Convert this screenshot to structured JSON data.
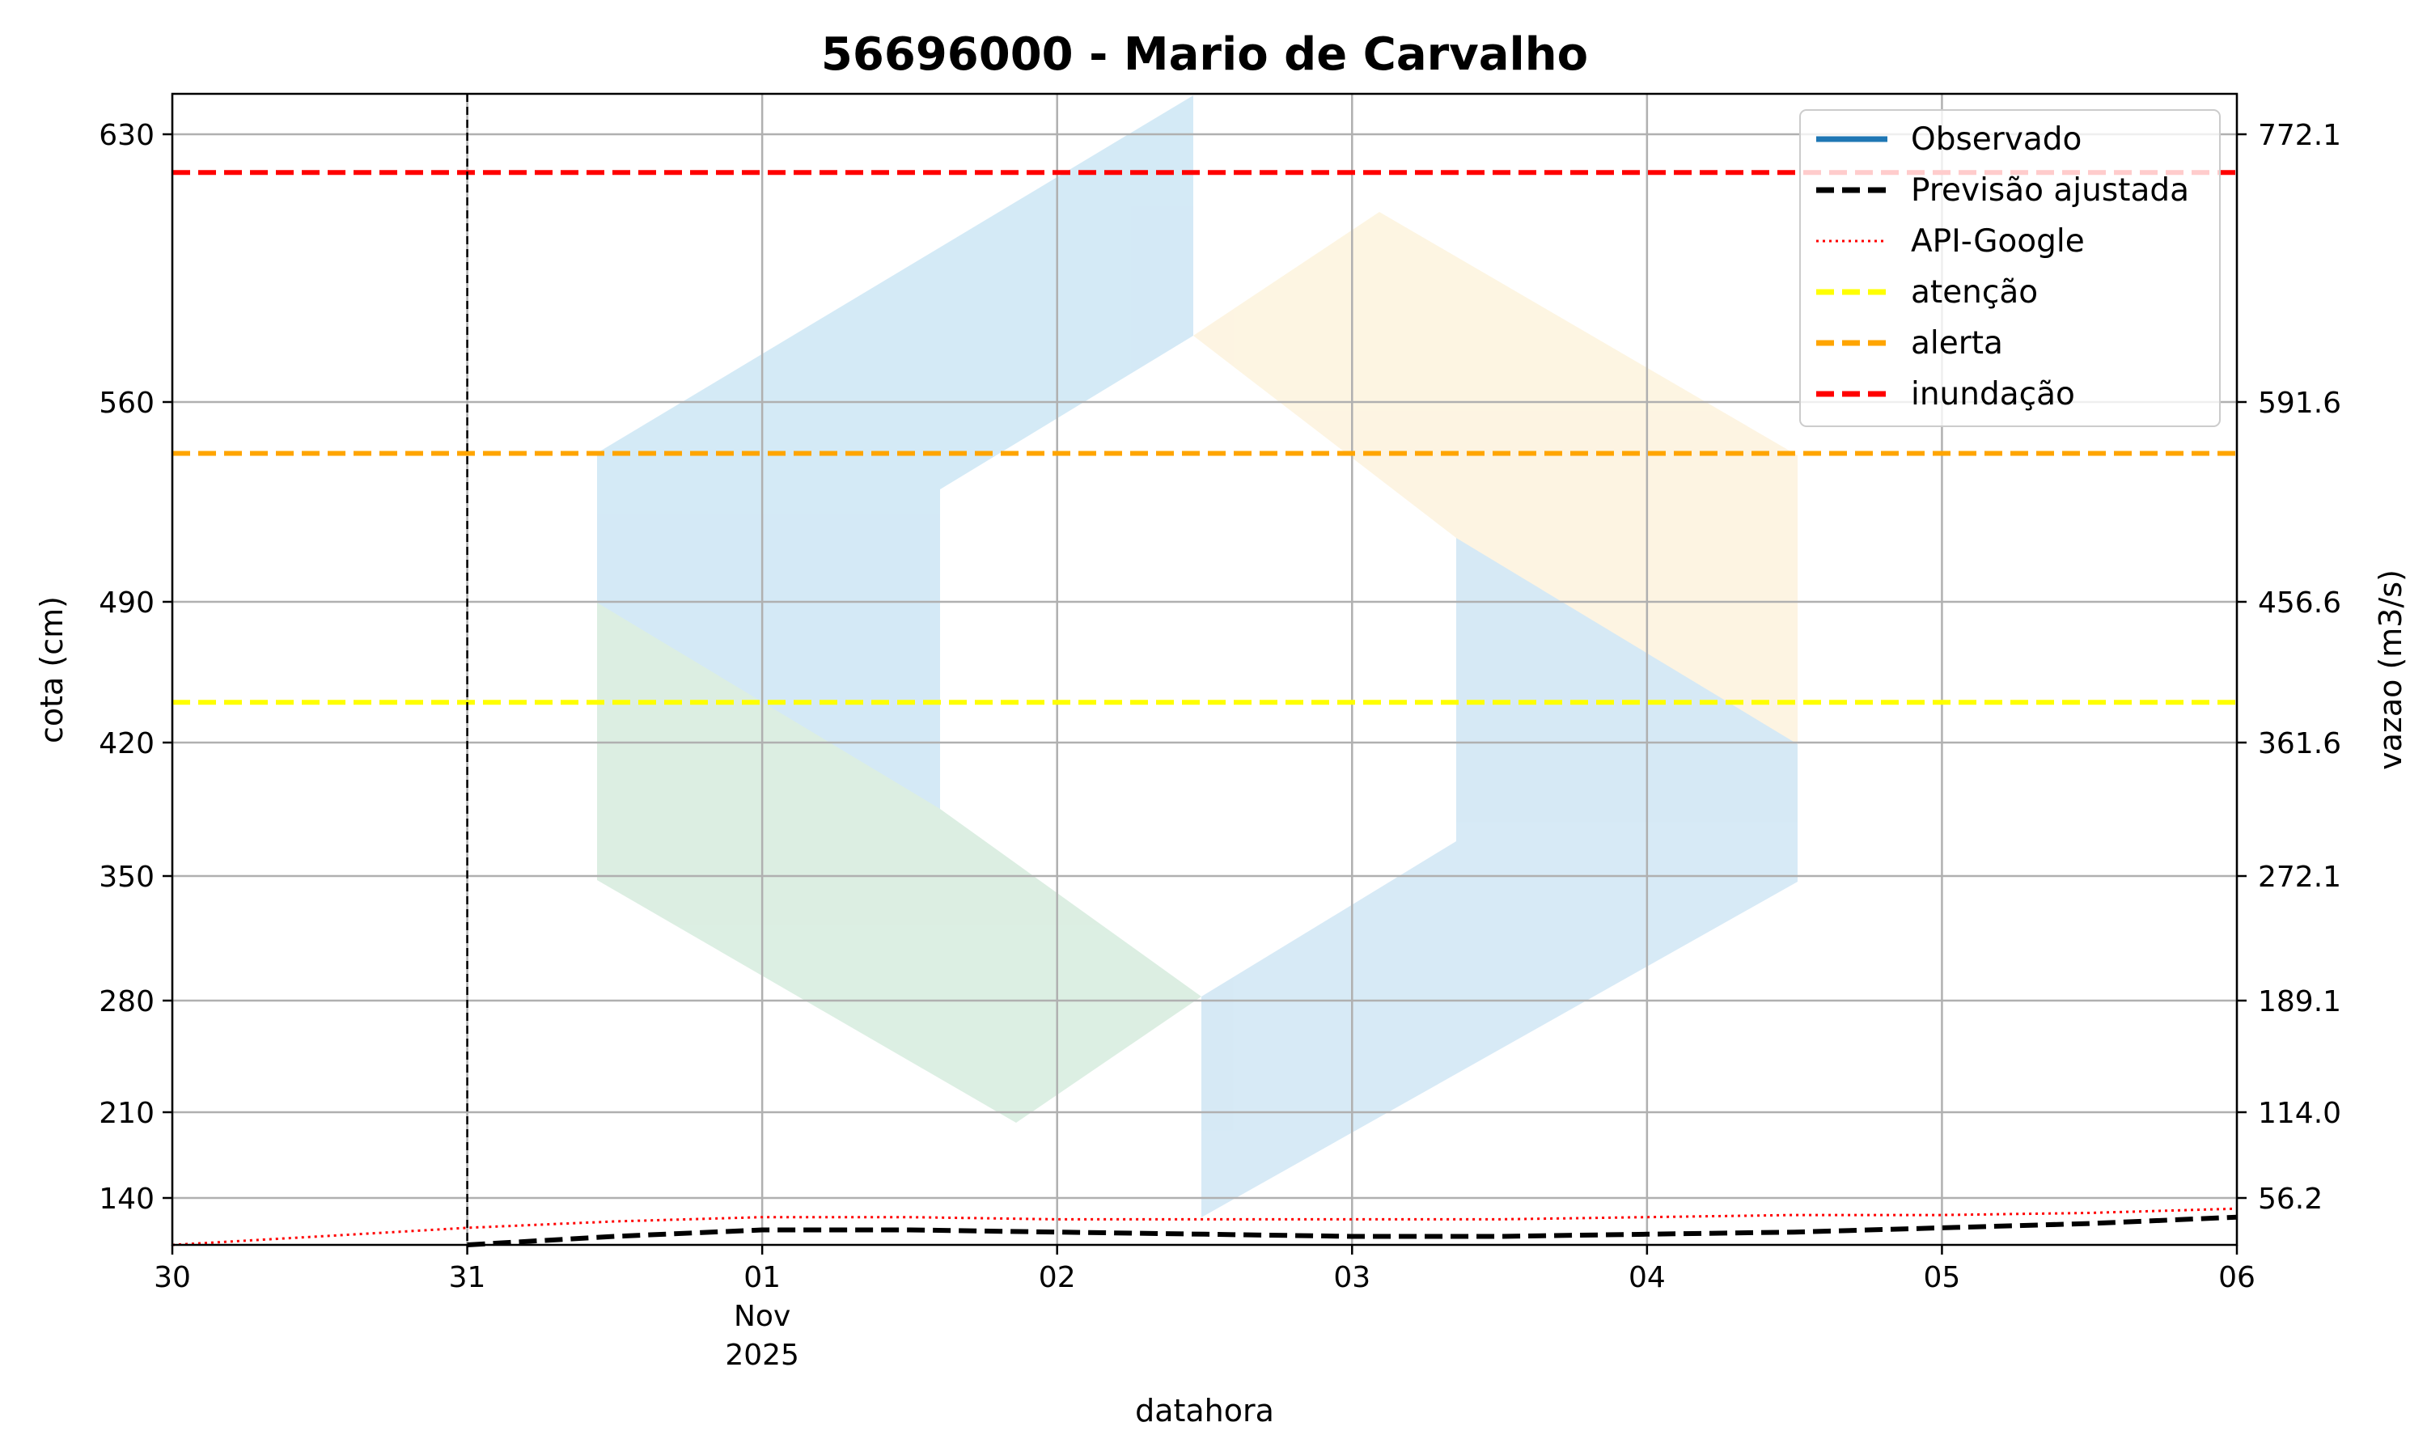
{
  "chart_data": {
    "type": "line",
    "title": "56696000 - Mario de Carvalho",
    "xlabel": "datahora",
    "ylabel": "cota (cm)",
    "y2label": "vazao (m3/s)",
    "x_range": [
      "2025-10-30T00:00",
      "2025-11-06T00:00"
    ],
    "x_ticks": [
      {
        "date": "2025-10-30",
        "label": "30"
      },
      {
        "date": "2025-10-31",
        "label": "31"
      },
      {
        "date": "2025-11-01",
        "label": "01",
        "sub": [
          "Nov",
          "2025"
        ]
      },
      {
        "date": "2025-11-02",
        "label": "02"
      },
      {
        "date": "2025-11-03",
        "label": "03"
      },
      {
        "date": "2025-11-04",
        "label": "04"
      },
      {
        "date": "2025-11-05",
        "label": "05"
      },
      {
        "date": "2025-11-06",
        "label": "06"
      }
    ],
    "y_ticks": [
      140,
      210,
      280,
      350,
      420,
      490,
      560,
      630
    ],
    "y2_ticks": [
      "56.2",
      "114.0",
      "189.1",
      "272.1",
      "361.6",
      "456.6",
      "591.6",
      "772.1"
    ],
    "y_scale": "nonlinear (rating-curve spacing)",
    "ylim": [
      118,
      640
    ],
    "grid": true,
    "legend_position": "top-right",
    "forecast_start_line": "2025-10-31",
    "series": [
      {
        "name": "Observado",
        "color": "#1f77b4",
        "style": "solid",
        "points": []
      },
      {
        "name": "Previsão ajustada",
        "color": "#000000",
        "style": "dashed",
        "points": [
          [
            "2025-10-31T00:00",
            118
          ],
          [
            "2025-10-31T12:00",
            122
          ],
          [
            "2025-11-01T00:00",
            125
          ],
          [
            "2025-11-01T12:00",
            125
          ],
          [
            "2025-11-02T00:00",
            124
          ],
          [
            "2025-11-02T12:00",
            123
          ],
          [
            "2025-11-03T00:00",
            122
          ],
          [
            "2025-11-03T12:00",
            122
          ],
          [
            "2025-11-04T00:00",
            123
          ],
          [
            "2025-11-04T12:00",
            124
          ],
          [
            "2025-11-05T00:00",
            126
          ],
          [
            "2025-11-05T12:00",
            128
          ],
          [
            "2025-11-06T00:00",
            131
          ]
        ]
      },
      {
        "name": "API-Google",
        "color": "#ff0000",
        "style": "dotted",
        "points": [
          [
            "2025-10-30T00:00",
            118
          ],
          [
            "2025-10-30T12:00",
            122
          ],
          [
            "2025-10-31T00:00",
            126
          ],
          [
            "2025-10-31T12:00",
            129
          ],
          [
            "2025-11-01T00:00",
            131
          ],
          [
            "2025-11-01T12:00",
            131
          ],
          [
            "2025-11-02T00:00",
            130
          ],
          [
            "2025-11-02T12:00",
            130
          ],
          [
            "2025-11-03T00:00",
            130
          ],
          [
            "2025-11-03T12:00",
            130
          ],
          [
            "2025-11-04T00:00",
            131
          ],
          [
            "2025-11-04T12:00",
            132
          ],
          [
            "2025-11-05T00:00",
            132
          ],
          [
            "2025-11-05T12:00",
            133
          ],
          [
            "2025-11-06T00:00",
            135
          ]
        ]
      }
    ],
    "thresholds": [
      {
        "name": "atenção",
        "value": 440,
        "color": "#ffff00",
        "style": "dashed"
      },
      {
        "name": "alerta",
        "value": 542,
        "color": "#ffa500",
        "style": "dashed"
      },
      {
        "name": "inundação",
        "value": 620,
        "color": "#ff0000",
        "style": "dashed"
      }
    ]
  }
}
